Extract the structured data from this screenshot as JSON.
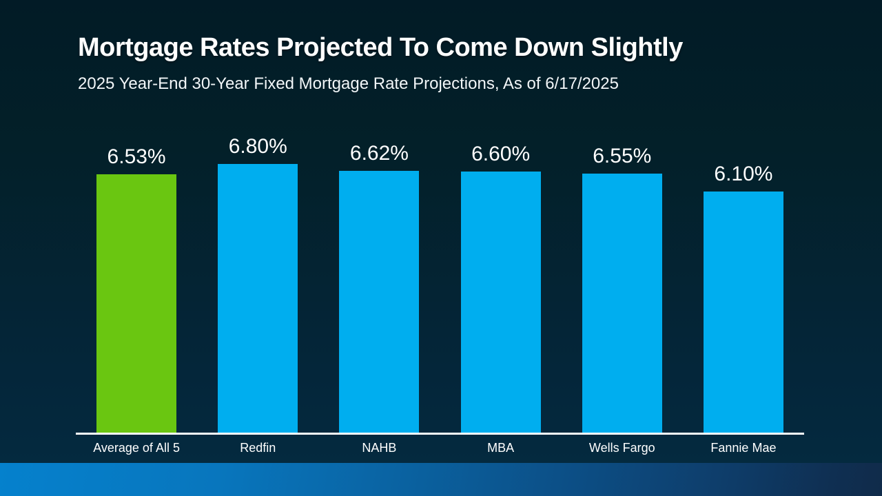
{
  "slide": {
    "title": "Mortgage Rates Projected To Come Down Slightly",
    "subtitle": "2025 Year-End 30-Year Fixed Mortgage Rate Projections, As of 6/17/2025"
  },
  "colors": {
    "background_top": "#021b26",
    "background_bottom": "#042b41",
    "bar_blue": "#00aeef",
    "bar_green": "#6ac611",
    "text": "#ffffff",
    "axis_line": "#ffffff",
    "footer_gradient_left": "#0581cd",
    "footer_gradient_right": "#102b4a"
  },
  "chart_data": {
    "type": "bar",
    "title": "Mortgage Rates Projected To Come Down Slightly",
    "subtitle": "2025 Year-End 30-Year Fixed Mortgage Rate Projections, As of 6/17/2025",
    "categories": [
      "Average of All 5",
      "Redfin",
      "NAHB",
      "MBA",
      "Wells Fargo",
      "Fannie Mae"
    ],
    "values": [
      6.53,
      6.8,
      6.62,
      6.6,
      6.55,
      6.1
    ],
    "value_labels": [
      "6.53%",
      "6.80%",
      "6.62%",
      "6.60%",
      "6.55%",
      "6.10%"
    ],
    "bar_colors": [
      "#6ac611",
      "#00aeef",
      "#00aeef",
      "#00aeef",
      "#00aeef",
      "#00aeef"
    ],
    "xlabel": "",
    "ylabel": "",
    "ylim": [
      0,
      6.8
    ],
    "grid": false,
    "legend": false,
    "value_axis_visible": false,
    "data_labels_position": "above-bar"
  }
}
